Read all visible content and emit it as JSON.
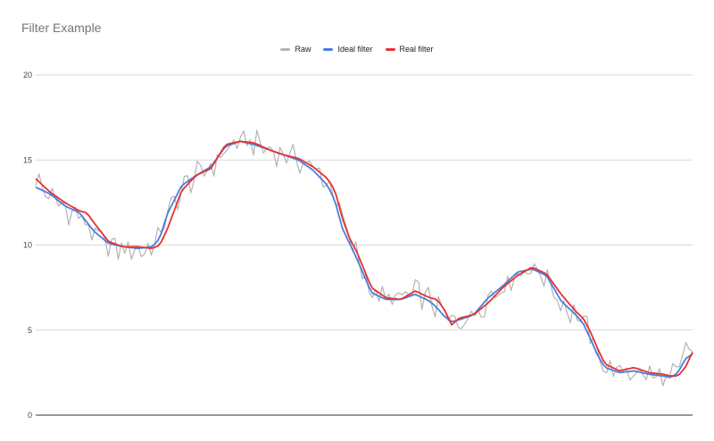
{
  "chart_data": {
    "type": "line",
    "title": "Filter Example",
    "xlabel": "",
    "ylabel": "",
    "ylim": [
      0,
      20
    ],
    "yticks": [
      0,
      5,
      10,
      15,
      20
    ],
    "grid": true,
    "legend_position": "top-center",
    "n_points": 200,
    "series": [
      {
        "name": "Raw",
        "color": "#b3b3b3",
        "key_points": [
          [
            0,
            13.9
          ],
          [
            5,
            13.3
          ],
          [
            10,
            12.8
          ],
          [
            15,
            12.5
          ],
          [
            20,
            12.2
          ],
          [
            25,
            11.9
          ],
          [
            30,
            11.7
          ],
          [
            35,
            11.2
          ],
          [
            40,
            10.6
          ],
          [
            45,
            10.2
          ],
          [
            50,
            10.0
          ],
          [
            55,
            9.8
          ],
          [
            60,
            9.7
          ],
          [
            65,
            9.8
          ],
          [
            70,
            9.7
          ],
          [
            75,
            9.7
          ],
          [
            80,
            9.9
          ],
          [
            85,
            10.6
          ],
          [
            90,
            11.8
          ],
          [
            95,
            12.5
          ],
          [
            100,
            13.2
          ],
          [
            105,
            13.8
          ],
          [
            110,
            14.0
          ],
          [
            115,
            14.3
          ],
          [
            120,
            14.6
          ],
          [
            125,
            15.0
          ],
          [
            130,
            15.6
          ],
          [
            135,
            15.9
          ],
          [
            140,
            16.0
          ],
          [
            145,
            16.1
          ],
          [
            150,
            16.0
          ],
          [
            155,
            15.8
          ],
          [
            160,
            15.6
          ],
          [
            165,
            15.5
          ],
          [
            170,
            15.3
          ],
          [
            175,
            15.2
          ],
          [
            180,
            15.0
          ],
          [
            185,
            14.8
          ],
          [
            190,
            14.5
          ],
          [
            195,
            14.1
          ],
          [
            200,
            13.7
          ],
          [
            205,
            13.0
          ],
          [
            210,
            11.5
          ],
          [
            215,
            10.2
          ],
          [
            220,
            9.4
          ],
          [
            225,
            8.3
          ],
          [
            230,
            7.3
          ],
          [
            235,
            6.9
          ],
          [
            240,
            6.9
          ],
          [
            245,
            6.8
          ],
          [
            250,
            6.9
          ],
          [
            255,
            7.0
          ],
          [
            260,
            7.2
          ],
          [
            265,
            7.0
          ],
          [
            270,
            6.7
          ],
          [
            275,
            6.4
          ],
          [
            280,
            5.9
          ],
          [
            285,
            5.4
          ],
          [
            290,
            5.6
          ],
          [
            295,
            5.7
          ],
          [
            300,
            5.9
          ],
          [
            305,
            6.4
          ],
          [
            310,
            6.9
          ],
          [
            315,
            7.3
          ],
          [
            320,
            7.6
          ],
          [
            325,
            7.9
          ],
          [
            330,
            8.3
          ],
          [
            335,
            8.6
          ],
          [
            340,
            8.6
          ],
          [
            345,
            8.4
          ],
          [
            350,
            8.1
          ],
          [
            355,
            7.3
          ],
          [
            360,
            6.6
          ],
          [
            365,
            6.2
          ],
          [
            370,
            5.9
          ],
          [
            375,
            5.5
          ],
          [
            380,
            4.6
          ],
          [
            385,
            3.6
          ],
          [
            390,
            2.9
          ],
          [
            395,
            2.6
          ],
          [
            400,
            2.5
          ],
          [
            405,
            2.7
          ],
          [
            410,
            2.6
          ],
          [
            415,
            2.4
          ],
          [
            420,
            2.3
          ],
          [
            425,
            2.3
          ],
          [
            430,
            2.2
          ],
          [
            435,
            2.1
          ],
          [
            440,
            2.5
          ],
          [
            445,
            3.6
          ],
          [
            450,
            4.1
          ]
        ]
      },
      {
        "name": "Ideal filter",
        "color": "#4a7ee0",
        "key_points": [
          [
            0,
            13.4
          ],
          [
            10,
            13.0
          ],
          [
            20,
            12.3
          ],
          [
            30,
            11.9
          ],
          [
            40,
            10.8
          ],
          [
            50,
            10.1
          ],
          [
            60,
            9.9
          ],
          [
            70,
            9.8
          ],
          [
            80,
            9.9
          ],
          [
            85,
            10.4
          ],
          [
            90,
            11.8
          ],
          [
            100,
            13.5
          ],
          [
            110,
            14.1
          ],
          [
            120,
            14.6
          ],
          [
            130,
            15.8
          ],
          [
            140,
            16.1
          ],
          [
            150,
            15.9
          ],
          [
            160,
            15.6
          ],
          [
            170,
            15.3
          ],
          [
            180,
            15.0
          ],
          [
            190,
            14.4
          ],
          [
            200,
            13.5
          ],
          [
            205,
            12.6
          ],
          [
            210,
            11.0
          ],
          [
            215,
            10.1
          ],
          [
            220,
            9.2
          ],
          [
            230,
            7.2
          ],
          [
            240,
            6.8
          ],
          [
            250,
            6.8
          ],
          [
            260,
            7.1
          ],
          [
            270,
            6.7
          ],
          [
            275,
            6.3
          ],
          [
            280,
            5.8
          ],
          [
            285,
            5.5
          ],
          [
            290,
            5.6
          ],
          [
            300,
            5.9
          ],
          [
            310,
            6.9
          ],
          [
            320,
            7.6
          ],
          [
            330,
            8.4
          ],
          [
            340,
            8.6
          ],
          [
            350,
            8.2
          ],
          [
            360,
            6.7
          ],
          [
            370,
            5.9
          ],
          [
            375,
            5.4
          ],
          [
            380,
            4.5
          ],
          [
            385,
            3.5
          ],
          [
            390,
            2.8
          ],
          [
            400,
            2.5
          ],
          [
            410,
            2.6
          ],
          [
            420,
            2.4
          ],
          [
            430,
            2.3
          ],
          [
            435,
            2.2
          ],
          [
            440,
            2.5
          ],
          [
            445,
            3.3
          ],
          [
            450,
            3.6
          ]
        ]
      },
      {
        "name": "Real filter",
        "color": "#e8312d",
        "key_points": [
          [
            0,
            13.9
          ],
          [
            10,
            13.1
          ],
          [
            20,
            12.5
          ],
          [
            30,
            12.0
          ],
          [
            35,
            11.9
          ],
          [
            40,
            11.3
          ],
          [
            50,
            10.2
          ],
          [
            60,
            9.9
          ],
          [
            70,
            9.9
          ],
          [
            80,
            9.8
          ],
          [
            85,
            10.0
          ],
          [
            90,
            10.9
          ],
          [
            100,
            13.2
          ],
          [
            110,
            14.1
          ],
          [
            120,
            14.5
          ],
          [
            130,
            15.9
          ],
          [
            140,
            16.1
          ],
          [
            150,
            16.0
          ],
          [
            160,
            15.6
          ],
          [
            170,
            15.3
          ],
          [
            180,
            15.1
          ],
          [
            190,
            14.6
          ],
          [
            200,
            13.9
          ],
          [
            205,
            13.2
          ],
          [
            210,
            11.6
          ],
          [
            215,
            10.4
          ],
          [
            220,
            9.6
          ],
          [
            230,
            7.5
          ],
          [
            240,
            6.9
          ],
          [
            250,
            6.8
          ],
          [
            260,
            7.3
          ],
          [
            270,
            6.9
          ],
          [
            275,
            6.8
          ],
          [
            280,
            6.2
          ],
          [
            285,
            5.3
          ],
          [
            290,
            5.7
          ],
          [
            300,
            5.9
          ],
          [
            310,
            6.6
          ],
          [
            320,
            7.5
          ],
          [
            330,
            8.2
          ],
          [
            340,
            8.7
          ],
          [
            350,
            8.3
          ],
          [
            360,
            7.1
          ],
          [
            370,
            6.1
          ],
          [
            375,
            5.7
          ],
          [
            380,
            4.9
          ],
          [
            385,
            3.9
          ],
          [
            390,
            3.0
          ],
          [
            400,
            2.6
          ],
          [
            410,
            2.8
          ],
          [
            420,
            2.5
          ],
          [
            430,
            2.4
          ],
          [
            435,
            2.3
          ],
          [
            440,
            2.3
          ],
          [
            445,
            2.8
          ],
          [
            450,
            3.7
          ]
        ]
      }
    ]
  }
}
